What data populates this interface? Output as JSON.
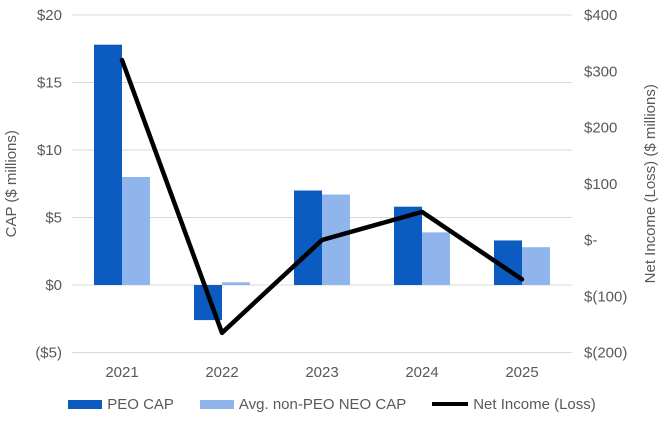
{
  "chart_data": {
    "type": "bar",
    "subtype": "combo-bar-line",
    "categories": [
      "2021",
      "2022",
      "2023",
      "2024",
      "2025"
    ],
    "series": [
      {
        "name": "PEO CAP",
        "kind": "bar",
        "axis": "left",
        "color": "#0B5BC0",
        "values": [
          17.8,
          -2.6,
          7.0,
          5.8,
          3.3
        ]
      },
      {
        "name": "Avg. non-PEO NEO CAP",
        "kind": "bar",
        "axis": "left",
        "color": "#8FB5EC",
        "values": [
          8.0,
          0.2,
          6.7,
          3.9,
          2.8
        ]
      },
      {
        "name": "Net Income (Loss)",
        "kind": "line",
        "axis": "right",
        "color": "#000000",
        "values": [
          320,
          -165,
          0,
          50,
          -70
        ]
      }
    ],
    "left_axis": {
      "title": "CAP ($ millions)",
      "min": -5,
      "max": 20,
      "step": 5,
      "tick_values": [
        20,
        15,
        10,
        5,
        0,
        -5
      ],
      "tick_labels": [
        "$20",
        "$15",
        "$10",
        "$5",
        "$0",
        "($5)"
      ]
    },
    "right_axis": {
      "title": "Net Income (Loss) ($ millions)",
      "min": -200,
      "max": 400,
      "step": 100,
      "tick_values": [
        400,
        300,
        200,
        100,
        0,
        -100,
        -200
      ],
      "tick_labels": [
        "$400",
        "$300",
        "$200",
        "$100",
        "$-",
        "$(100)",
        "$(200)"
      ]
    },
    "grid": true,
    "legend_position": "bottom",
    "colors": {
      "grid": "#D9D9D9",
      "text": "#595959",
      "background": "#FFFFFF"
    }
  }
}
